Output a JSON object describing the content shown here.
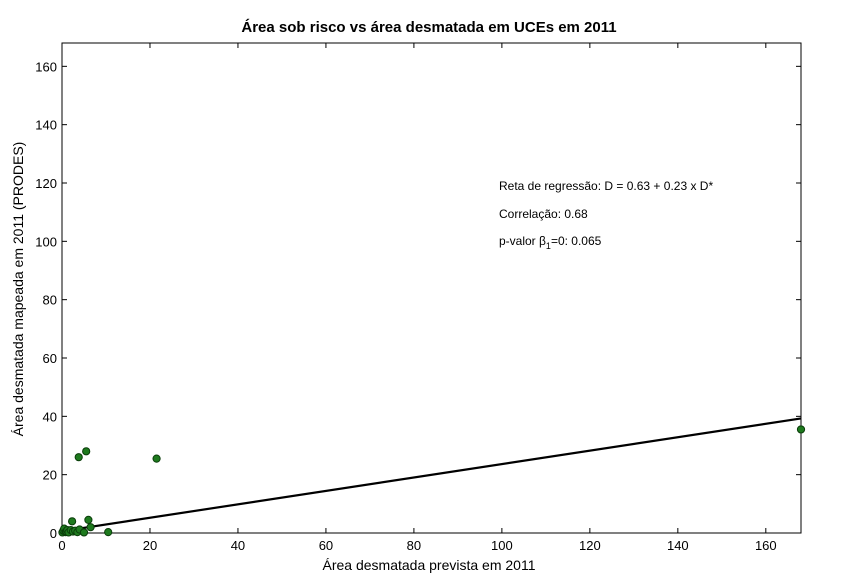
{
  "chart_data": {
    "type": "scatter",
    "title": "Área sob risco vs área desmatada em UCEs em 2011",
    "xlabel": "Área desmatada prevista em 2011",
    "ylabel": "Área desmatada mapeada em 2011 (PRODES)",
    "xlim": [
      0,
      168
    ],
    "ylim": [
      0,
      168
    ],
    "xticks": [
      0,
      20,
      40,
      60,
      80,
      100,
      120,
      140,
      160
    ],
    "yticks": [
      0,
      20,
      40,
      60,
      80,
      100,
      120,
      140,
      160
    ],
    "grid": false,
    "point_color": "#1e7a1e",
    "line_color": "#000000",
    "series": [
      {
        "values": [
          [
            0.1,
            0.2
          ],
          [
            0.3,
            0.8
          ],
          [
            0.5,
            1.5
          ],
          [
            0.8,
            0.3
          ],
          [
            1.0,
            0.5
          ],
          [
            1.2,
            1.0
          ],
          [
            1.5,
            0.2
          ],
          [
            2.0,
            1.0
          ],
          [
            2.5,
            0.5
          ],
          [
            3.0,
            0.8
          ],
          [
            3.5,
            0.3
          ],
          [
            4.0,
            1.2
          ],
          [
            2.3,
            4.0
          ],
          [
            3.8,
            26.0
          ],
          [
            5.5,
            28.0
          ],
          [
            5.0,
            0.2
          ],
          [
            6.0,
            4.5
          ],
          [
            6.5,
            2.0
          ],
          [
            10.5,
            0.3
          ],
          [
            21.5,
            25.5
          ],
          [
            168.0,
            35.5
          ]
        ]
      }
    ],
    "regression": {
      "intercept": 0.63,
      "slope": 0.23
    },
    "annotations": {
      "regression_text": "Reta de regressão: D = 0.63 + 0.23 x D*",
      "correlation_text": "Correlação:  0.68",
      "pvalue_prefix": "p-valor β",
      "pvalue_subscript": "1",
      "pvalue_suffix": "=0:  0.065"
    }
  }
}
